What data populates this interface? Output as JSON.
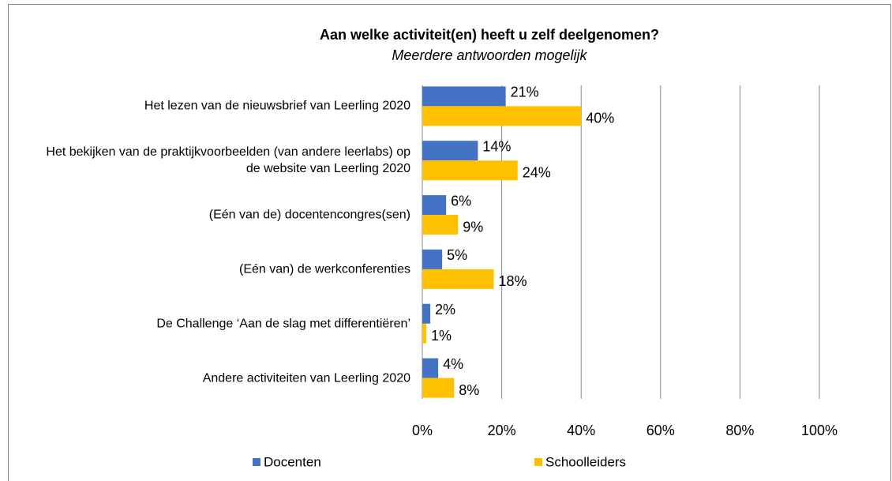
{
  "chart_data": {
    "type": "hbar",
    "title": "Aan welke activiteit(en) heeft u zelf deelgenomen?",
    "subtitle": "Meerdere antwoorden mogelijk",
    "categories": [
      "Het lezen van de nieuwsbrief van Leerling 2020",
      "Het bekijken van de praktijkvoorbeelden (van andere leerlabs) op de website van Leerling 2020",
      "(Eén van de) docentencongres(sen)",
      "(Eén van) de werkconferenties",
      "De Challenge ‘Aan de slag met differentiëren’",
      "Andere activiteiten van Leerling 2020"
    ],
    "series": [
      {
        "name": "Docenten",
        "color": "#4472c4",
        "values": [
          21,
          14,
          6,
          5,
          2,
          4
        ],
        "value_labels": [
          "21%",
          "14%",
          "6%",
          "5%",
          "2%",
          "4%"
        ]
      },
      {
        "name": "Schoolleiders",
        "color": "#ffc000",
        "values": [
          40,
          24,
          9,
          18,
          1,
          8
        ],
        "value_labels": [
          "40%",
          "24%",
          "9%",
          "18%",
          "1%",
          "8%"
        ]
      }
    ],
    "xlim": [
      0,
      100
    ],
    "xticks": [
      {
        "value": 0,
        "label": "0%"
      },
      {
        "value": 20,
        "label": "20%"
      },
      {
        "value": 40,
        "label": "40%"
      },
      {
        "value": 60,
        "label": "60%"
      },
      {
        "value": 80,
        "label": "80%"
      },
      {
        "value": 100,
        "label": "100%"
      }
    ],
    "grid": true,
    "legend": "bottom"
  }
}
